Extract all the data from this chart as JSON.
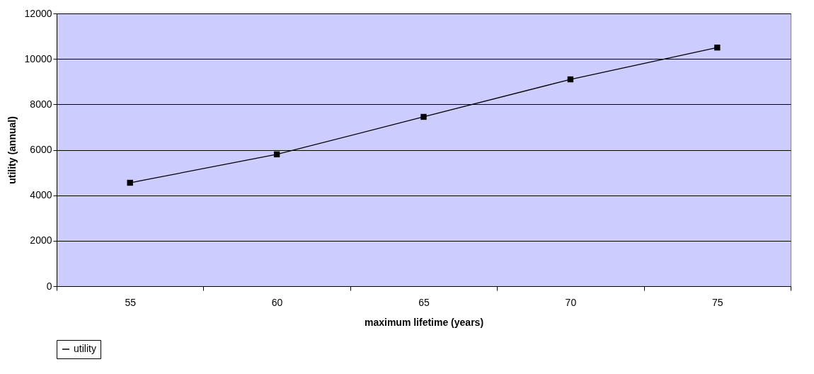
{
  "chart_data": {
    "type": "line",
    "xlabel": "maximum lifetime (years)",
    "ylabel": "utility (annual)",
    "categories": [
      "55",
      "60",
      "65",
      "70",
      "75"
    ],
    "series": [
      {
        "name": "utility",
        "color": "#000000",
        "values": [
          4550,
          5800,
          7450,
          9100,
          10500
        ]
      }
    ],
    "ylim": [
      0,
      12000
    ],
    "yticks": [
      0,
      2000,
      4000,
      6000,
      8000,
      10000,
      12000
    ],
    "grid": "y",
    "legend": "bottom",
    "marker": "square",
    "line_style": "solid"
  }
}
